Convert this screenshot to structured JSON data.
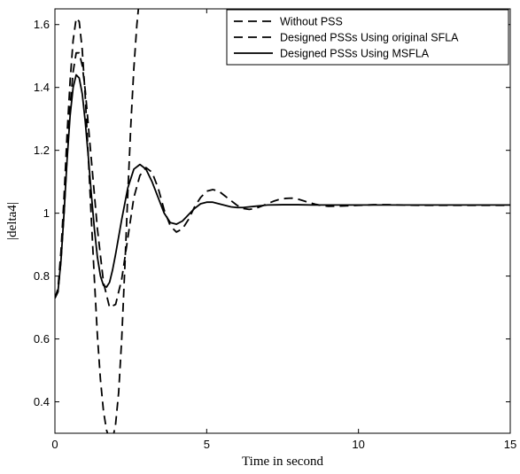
{
  "chart_data": {
    "type": "line",
    "xlabel": "Time in second",
    "ylabel": "|delta4|",
    "xlim": [
      0,
      15
    ],
    "ylim": [
      0.3,
      1.65
    ],
    "x_ticks": [
      0,
      5,
      10,
      15
    ],
    "y_ticks": [
      0.4,
      0.6,
      0.8,
      1.0,
      1.2,
      1.4,
      1.6
    ],
    "x_tick_labels": [
      "0",
      "5",
      "10",
      "15"
    ],
    "y_tick_labels": [
      "0.4",
      "0.6",
      "0.8",
      "1",
      "1.2",
      "1.4",
      "1.6"
    ],
    "grid": false,
    "legend_position": "top-right",
    "series": [
      {
        "name": "Without PSS",
        "style": "dashed",
        "color": "#000000",
        "x": [
          0,
          0.1,
          0.2,
          0.3,
          0.4,
          0.5,
          0.6,
          0.7,
          0.8,
          0.9,
          1.0,
          1.1,
          1.2,
          1.3,
          1.4,
          1.5,
          1.6,
          1.7,
          1.8,
          1.9,
          2.0,
          2.1,
          2.2,
          2.3,
          2.4,
          2.5,
          2.6,
          2.7,
          2.75
        ],
        "y": [
          0.73,
          0.76,
          0.88,
          1.05,
          1.25,
          1.42,
          1.55,
          1.62,
          1.61,
          1.52,
          1.37,
          1.18,
          0.98,
          0.79,
          0.61,
          0.47,
          0.37,
          0.31,
          0.28,
          0.28,
          0.33,
          0.43,
          0.6,
          0.82,
          1.06,
          1.28,
          1.46,
          1.6,
          1.65
        ]
      },
      {
        "name": "Designed PSSs Using original SFLA",
        "style": "dashed",
        "color": "#000000",
        "x": [
          0,
          0.1,
          0.2,
          0.3,
          0.4,
          0.5,
          0.6,
          0.7,
          0.8,
          0.9,
          1.0,
          1.2,
          1.4,
          1.6,
          1.8,
          2.0,
          2.2,
          2.4,
          2.6,
          2.8,
          3.0,
          3.2,
          3.4,
          3.6,
          3.8,
          4.0,
          4.2,
          4.4,
          4.6,
          4.8,
          5.0,
          5.2,
          5.4,
          5.6,
          5.8,
          6.0,
          6.2,
          6.4,
          6.6,
          6.8,
          7.0,
          7.2,
          7.4,
          7.6,
          7.8,
          8.0,
          8.2,
          8.4,
          8.6,
          8.8,
          9.0,
          9.5,
          10,
          10.5,
          11,
          11.5,
          12,
          12.5,
          13,
          13.5,
          14,
          14.5,
          15
        ],
        "y": [
          0.73,
          0.75,
          0.85,
          1.0,
          1.18,
          1.34,
          1.45,
          1.51,
          1.51,
          1.47,
          1.39,
          1.17,
          0.95,
          0.78,
          0.7,
          0.71,
          0.79,
          0.92,
          1.05,
          1.12,
          1.145,
          1.13,
          1.08,
          1.01,
          0.96,
          0.94,
          0.95,
          0.98,
          1.02,
          1.05,
          1.07,
          1.075,
          1.07,
          1.055,
          1.04,
          1.025,
          1.015,
          1.012,
          1.015,
          1.022,
          1.03,
          1.038,
          1.044,
          1.047,
          1.048,
          1.045,
          1.039,
          1.033,
          1.028,
          1.024,
          1.022,
          1.023,
          1.025,
          1.027,
          1.027,
          1.026,
          1.025,
          1.025,
          1.025,
          1.025,
          1.025,
          1.025,
          1.025
        ]
      },
      {
        "name": "Designed PSSs Using MSFLA",
        "style": "solid",
        "color": "#000000",
        "x": [
          0,
          0.1,
          0.2,
          0.3,
          0.4,
          0.5,
          0.6,
          0.7,
          0.8,
          0.9,
          1.0,
          1.1,
          1.2,
          1.3,
          1.4,
          1.5,
          1.6,
          1.7,
          1.8,
          1.9,
          2.0,
          2.2,
          2.4,
          2.6,
          2.8,
          3.0,
          3.2,
          3.4,
          3.6,
          3.8,
          4.0,
          4.2,
          4.4,
          4.6,
          4.8,
          5.0,
          5.2,
          5.4,
          5.6,
          5.8,
          6.0,
          6.2,
          6.4,
          6.6,
          6.8,
          7.0,
          7.5,
          8,
          8.5,
          9,
          9.5,
          10,
          11,
          12,
          13,
          14,
          15
        ],
        "y": [
          0.73,
          0.75,
          0.85,
          1.0,
          1.17,
          1.31,
          1.4,
          1.44,
          1.43,
          1.38,
          1.29,
          1.18,
          1.06,
          0.95,
          0.86,
          0.8,
          0.77,
          0.765,
          0.78,
          0.82,
          0.87,
          0.98,
          1.08,
          1.14,
          1.155,
          1.14,
          1.1,
          1.05,
          1.0,
          0.97,
          0.965,
          0.975,
          0.995,
          1.015,
          1.03,
          1.035,
          1.035,
          1.03,
          1.025,
          1.02,
          1.018,
          1.018,
          1.02,
          1.022,
          1.024,
          1.026,
          1.027,
          1.027,
          1.026,
          1.026,
          1.026,
          1.026,
          1.026,
          1.026,
          1.026,
          1.026,
          1.026
        ]
      }
    ]
  }
}
